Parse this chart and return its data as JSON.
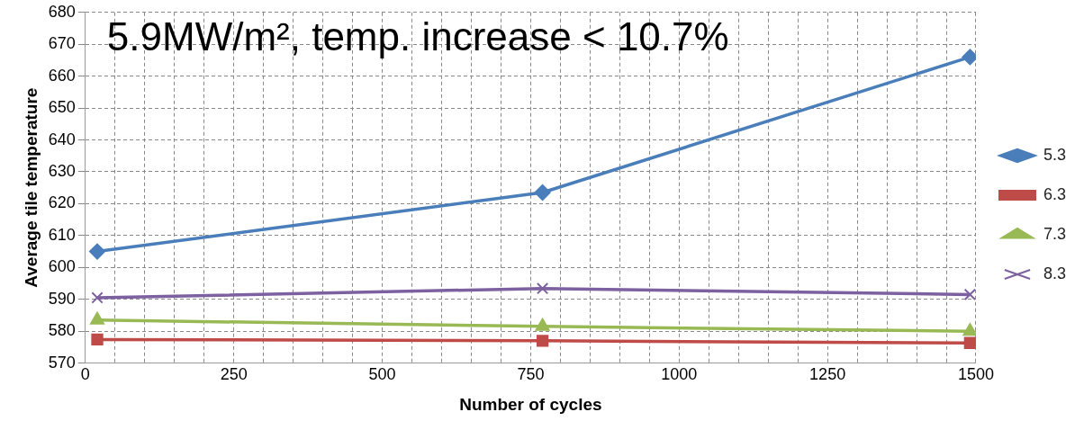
{
  "chart_data": {
    "type": "line",
    "title": "5.9MW/m², temp. increase < 10.7%",
    "xlabel": "Number of cycles",
    "ylabel": "Average tile temperature",
    "x": [
      20,
      770,
      1490
    ],
    "series": [
      {
        "name": "5.3",
        "color": "#4a7ebb",
        "values": [
          605,
          623.5,
          666
        ],
        "marker": "diamond"
      },
      {
        "name": "6.3",
        "color": "#be4b48",
        "values": [
          577.4,
          577,
          576.3
        ],
        "marker": "square"
      },
      {
        "name": "7.3",
        "color": "#98b954",
        "values": [
          583.5,
          581.5,
          580
        ],
        "marker": "triangle"
      },
      {
        "name": "8.3",
        "color": "#7d60a0",
        "values": [
          590.5,
          593.4,
          591.5
        ],
        "marker": "cross"
      }
    ],
    "xlim": [
      0,
      1500
    ],
    "xticks": [
      0,
      {
        "value": 50,
        "label": null
      },
      {
        "value": 100,
        "label": null
      },
      {
        "value": 150,
        "label": null
      },
      {
        "value": 200,
        "label": null
      },
      250,
      {
        "value": 300,
        "label": null
      },
      {
        "value": 350,
        "label": null
      },
      {
        "value": 400,
        "label": null
      },
      {
        "value": 450,
        "label": null
      },
      500,
      {
        "value": 550,
        "label": null
      },
      {
        "value": 600,
        "label": null
      },
      {
        "value": 650,
        "label": null
      },
      {
        "value": 700,
        "label": null
      },
      750,
      {
        "value": 800,
        "label": null
      },
      {
        "value": 850,
        "label": null
      },
      {
        "value": 900,
        "label": null
      },
      {
        "value": 950,
        "label": null
      },
      1000,
      {
        "value": 1050,
        "label": null
      },
      {
        "value": 1100,
        "label": null
      },
      {
        "value": 1150,
        "label": null
      },
      {
        "value": 1200,
        "label": null
      },
      1250,
      {
        "value": 1300,
        "label": null
      },
      {
        "value": 1350,
        "label": null
      },
      {
        "value": 1400,
        "label": null
      },
      {
        "value": 1450,
        "label": null
      },
      1500
    ],
    "ylim": [
      570,
      680
    ],
    "yticks": [
      570,
      580,
      590,
      600,
      610,
      620,
      630,
      640,
      650,
      660,
      670,
      680
    ],
    "grid": true,
    "legend": "right",
    "line_style": "solid"
  }
}
